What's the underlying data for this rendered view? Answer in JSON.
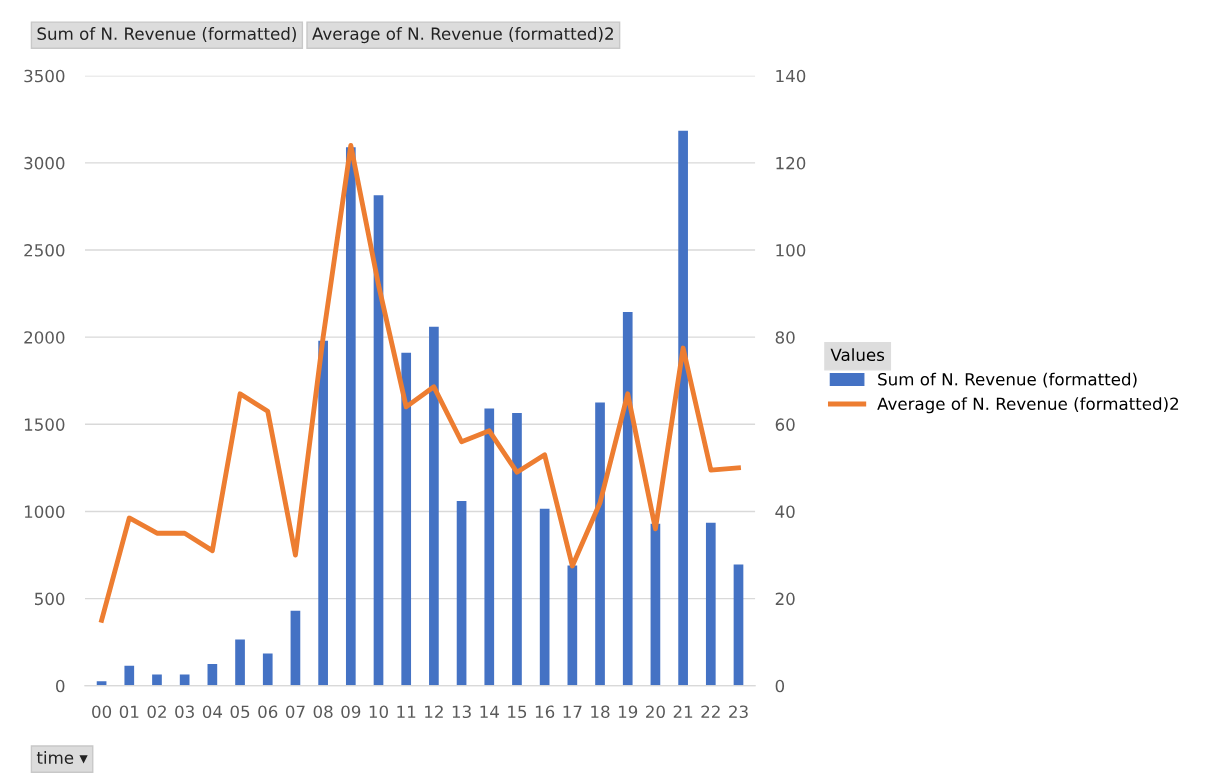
{
  "chart_data": {
    "type": "bar",
    "categories": [
      "00",
      "01",
      "02",
      "03",
      "04",
      "05",
      "06",
      "07",
      "08",
      "09",
      "10",
      "11",
      "12",
      "13",
      "14",
      "15",
      "16",
      "17",
      "18",
      "19",
      "20",
      "21",
      "22",
      "23"
    ],
    "series": [
      {
        "name": "Sum of N. Revenue (formatted)",
        "color": "#4472c4",
        "values": [
          25,
          115,
          65,
          65,
          125,
          265,
          185,
          430,
          1980,
          3090,
          2815,
          1910,
          2060,
          1060,
          1590,
          1565,
          1015,
          690,
          1625,
          2145,
          930,
          3185,
          935,
          695
        ]
      },
      {
        "name": "Average of N. Revenue (formatted)2",
        "type": "line",
        "axis": "y2",
        "color": "#ed7d31",
        "values": [
          15,
          38.5,
          35,
          35,
          31,
          67,
          63,
          30,
          80,
          124,
          92,
          64,
          68.6,
          56,
          58.5,
          49,
          53,
          27.5,
          42,
          67,
          36,
          77.5,
          49.5,
          50
        ]
      }
    ],
    "ylim": [
      0,
      3500
    ],
    "yticks": [
      0,
      500,
      1000,
      1500,
      2000,
      2500,
      3000,
      3500
    ],
    "y2lim": [
      0,
      140
    ],
    "y2ticks": [
      0,
      20,
      40,
      60,
      80,
      100,
      120,
      140
    ],
    "grid": "y",
    "legend": "right",
    "legend_title": "Values",
    "marker": "none",
    "line_style": "solid",
    "annotations": [
      "Sum of N. Revenue (formatted)",
      "Average of N. Revenue (formatted)2",
      "time ▾"
    ]
  }
}
